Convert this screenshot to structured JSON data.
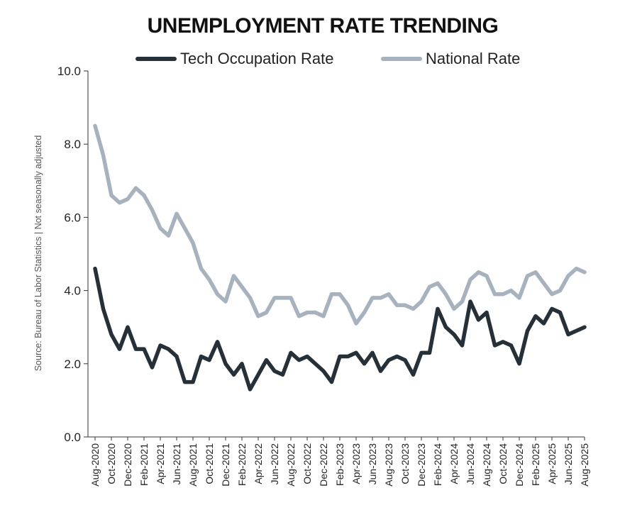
{
  "colors": {
    "tech": "#263038",
    "national": "#a6b2be",
    "axis": "#333333"
  },
  "chart_data": {
    "type": "line",
    "title": "UNEMPLOYMENT RATE TRENDING",
    "ylabel": "Source: Bureau of Labor Statistics | Not seasonally adjusted",
    "xlabel": "",
    "ylim": [
      0,
      10
    ],
    "yticks": [
      "0.0",
      "2.0",
      "4.0",
      "6.0",
      "8.0",
      "10.0"
    ],
    "grid": false,
    "legend_position": "top",
    "x": [
      "Aug-2020",
      "Sep-2020",
      "Oct-2020",
      "Nov-2020",
      "Dec-2020",
      "Jan-2021",
      "Feb-2021",
      "Mar-2021",
      "Apr-2021",
      "May-2021",
      "Jun-2021",
      "Jul-2021",
      "Aug-2021",
      "Sep-2021",
      "Oct-2021",
      "Nov-2021",
      "Dec-2021",
      "Jan-2022",
      "Feb-2022",
      "Mar-2022",
      "Apr-2022",
      "May-2022",
      "Jun-2022",
      "Jul-2022",
      "Aug-2022",
      "Sep-2022",
      "Oct-2022",
      "Nov-2022",
      "Dec-2022",
      "Jan-2023",
      "Feb-2023",
      "Mar-2023",
      "Apr-2023",
      "May-2023",
      "Jun-2023",
      "Jul-2023",
      "Aug-2023",
      "Sep-2023",
      "Oct-2023",
      "Nov-2023",
      "Dec-2023",
      "Jan-2024",
      "Feb-2024",
      "Mar-2024",
      "Apr-2024",
      "May-2024",
      "Jun-2024",
      "Jul-2024",
      "Aug-2024",
      "Sep-2024",
      "Oct-2024",
      "Nov-2024",
      "Dec-2024",
      "Jan-2025",
      "Feb-2025",
      "Mar-2025",
      "Apr-2025",
      "May-2025",
      "Jun-2025",
      "Jul-2025",
      "Aug-2025"
    ],
    "tick_labels": [
      "Aug-2020",
      "Oct-2020",
      "Dec-2020",
      "Feb-2021",
      "Apr-2021",
      "Jun-2021",
      "Aug-2021",
      "Oct-2021",
      "Dec-2021",
      "Feb-2022",
      "Apr-2022",
      "Jun-2022",
      "Aug-2022",
      "Oct-2022",
      "Dec-2022",
      "Feb-2023",
      "Apr-2023",
      "Jun-2023",
      "Aug-2023",
      "Oct-2023",
      "Dec-2023",
      "Feb-2024",
      "Apr-2024",
      "Jun-2024",
      "Aug-2024",
      "Oct-2024",
      "Dec-2024",
      "Feb-2025",
      "Apr-2025",
      "Jun-2025",
      "Aug-2025"
    ],
    "series": [
      {
        "name": "Tech Occupation Rate",
        "color": "#263038",
        "values": [
          4.6,
          3.5,
          2.8,
          2.4,
          3.0,
          2.4,
          2.4,
          1.9,
          2.5,
          2.4,
          2.2,
          1.5,
          1.5,
          2.2,
          2.1,
          2.6,
          2.0,
          1.7,
          2.0,
          1.3,
          1.7,
          2.1,
          1.8,
          1.7,
          2.3,
          2.1,
          2.2,
          2.0,
          1.8,
          1.5,
          2.2,
          2.2,
          2.3,
          2.0,
          2.3,
          1.8,
          2.1,
          2.2,
          2.1,
          1.7,
          2.3,
          2.3,
          3.5,
          3.0,
          2.8,
          2.5,
          3.7,
          3.2,
          3.4,
          2.5,
          2.6,
          2.5,
          2.0,
          2.9,
          3.3,
          3.1,
          3.5,
          3.4,
          2.8,
          2.9,
          3.0
        ]
      },
      {
        "name": "National Rate",
        "color": "#a6b2be",
        "values": [
          8.5,
          7.7,
          6.6,
          6.4,
          6.5,
          6.8,
          6.6,
          6.2,
          5.7,
          5.5,
          6.1,
          5.7,
          5.3,
          4.6,
          4.3,
          3.9,
          3.7,
          4.4,
          4.1,
          3.8,
          3.3,
          3.4,
          3.8,
          3.8,
          3.8,
          3.3,
          3.4,
          3.4,
          3.3,
          3.9,
          3.9,
          3.6,
          3.1,
          3.4,
          3.8,
          3.8,
          3.9,
          3.6,
          3.6,
          3.5,
          3.7,
          4.1,
          4.2,
          3.9,
          3.5,
          3.7,
          4.3,
          4.5,
          4.4,
          3.9,
          3.9,
          4.0,
          3.8,
          4.4,
          4.5,
          4.2,
          3.9,
          4.0,
          4.4,
          4.6,
          4.5
        ]
      }
    ]
  }
}
